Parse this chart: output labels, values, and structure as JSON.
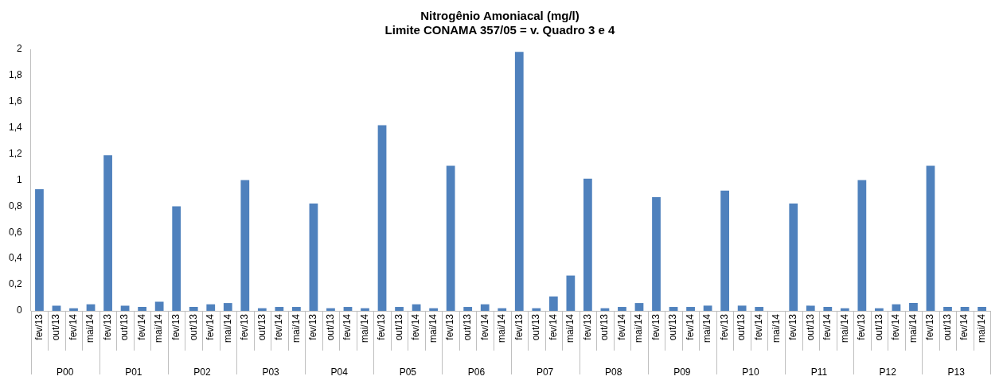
{
  "chart_data": {
    "type": "bar",
    "title": "Nitrogênio Amoniacal (mg/l)",
    "subtitle": "Limite CONAMA 357/05 = v. Quadro 3 e 4",
    "categories": [
      "fev/13",
      "out/13",
      "fev/14",
      "mai/14",
      "fev/13",
      "out/13",
      "fev/14",
      "mai/14",
      "fev/13",
      "out/13",
      "fev/14",
      "mai/14",
      "fev/13",
      "out/13",
      "fev/14",
      "mai/14",
      "fev/13",
      "out/13",
      "fev/14",
      "mai/14",
      "fev/13",
      "out/13",
      "fev/14",
      "mai/14",
      "fev/13",
      "out/13",
      "fev/14",
      "mai/14",
      "fev/13",
      "out/13",
      "fev/14",
      "mai/14",
      "fev/13",
      "out/13",
      "fev/14",
      "mai/14",
      "fev/13",
      "out/13",
      "fev/14",
      "mai/14",
      "fev/13",
      "out/13",
      "fev/14",
      "mai/14",
      "fev/13",
      "out/13",
      "fev/14",
      "mai/14",
      "fev/13",
      "out/13",
      "fev/14",
      "mai/14",
      "fev/13",
      "out/13",
      "fev/14",
      "mai/14"
    ],
    "values": [
      0.93,
      0.04,
      0.02,
      0.05,
      1.19,
      0.04,
      0.03,
      0.07,
      0.8,
      0.03,
      0.05,
      0.06,
      1.0,
      0.02,
      0.03,
      0.03,
      0.82,
      0.02,
      0.03,
      0.02,
      1.42,
      0.03,
      0.05,
      0.02,
      1.11,
      0.03,
      0.05,
      0.02,
      1.98,
      0.02,
      0.11,
      0.27,
      1.01,
      0.02,
      0.03,
      0.06,
      0.87,
      0.03,
      0.03,
      0.04,
      0.92,
      0.04,
      0.03,
      null,
      0.82,
      0.04,
      0.03,
      0.02,
      1.0,
      0.02,
      0.05,
      0.06,
      1.11,
      0.03,
      0.03,
      0.03
    ],
    "color": "#4f81bd",
    "annotations": [
      "P00",
      "P01",
      "P02",
      "P03",
      "P04",
      "P05",
      "P06",
      "P07",
      "P08",
      "P09",
      "P10",
      "P11",
      "P12",
      "P13"
    ],
    "ylim": [
      0,
      2
    ],
    "yticks": [
      0,
      {
        "value": 0.2,
        "label": "0,2"
      },
      {
        "value": 0.4,
        "label": "0,4"
      },
      {
        "value": 0.6,
        "label": "0,6"
      },
      {
        "value": 0.8,
        "label": "0,8"
      },
      1,
      {
        "value": 1.2,
        "label": "1,2"
      },
      {
        "value": 1.4,
        "label": "1,4"
      },
      {
        "value": 1.6,
        "label": "1,6"
      },
      {
        "value": 1.8,
        "label": "1,8"
      },
      2
    ],
    "grid": false
  }
}
